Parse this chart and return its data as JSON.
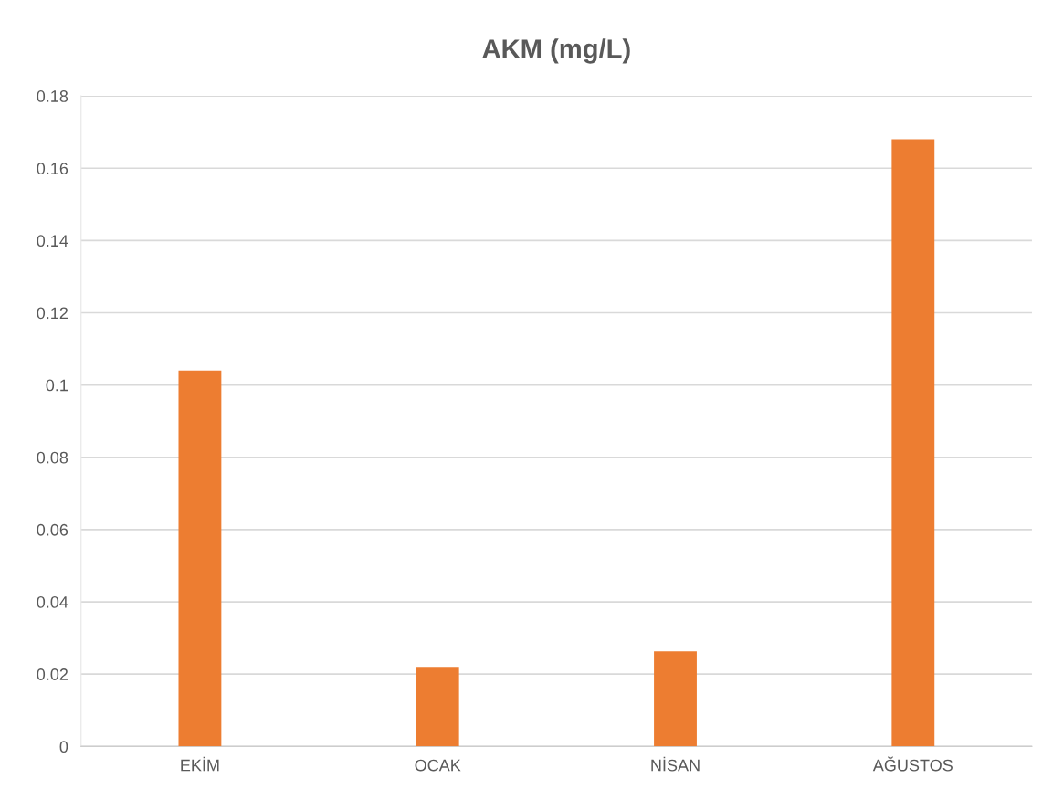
{
  "chart_data": {
    "type": "bar",
    "title": "AKM (mg/L)",
    "categories": [
      "EKİM",
      "OCAK",
      "NİSAN",
      "AĞUSTOS"
    ],
    "values": [
      0.104,
      0.022,
      0.0263,
      0.168
    ],
    "color": "#ed7d31",
    "ylim": [
      0,
      0.18
    ],
    "yticks": [
      0,
      0.02,
      0.04,
      0.06,
      0.08,
      0.1,
      0.12,
      0.14,
      0.16,
      0.18
    ],
    "grid": "y",
    "legend": false
  }
}
